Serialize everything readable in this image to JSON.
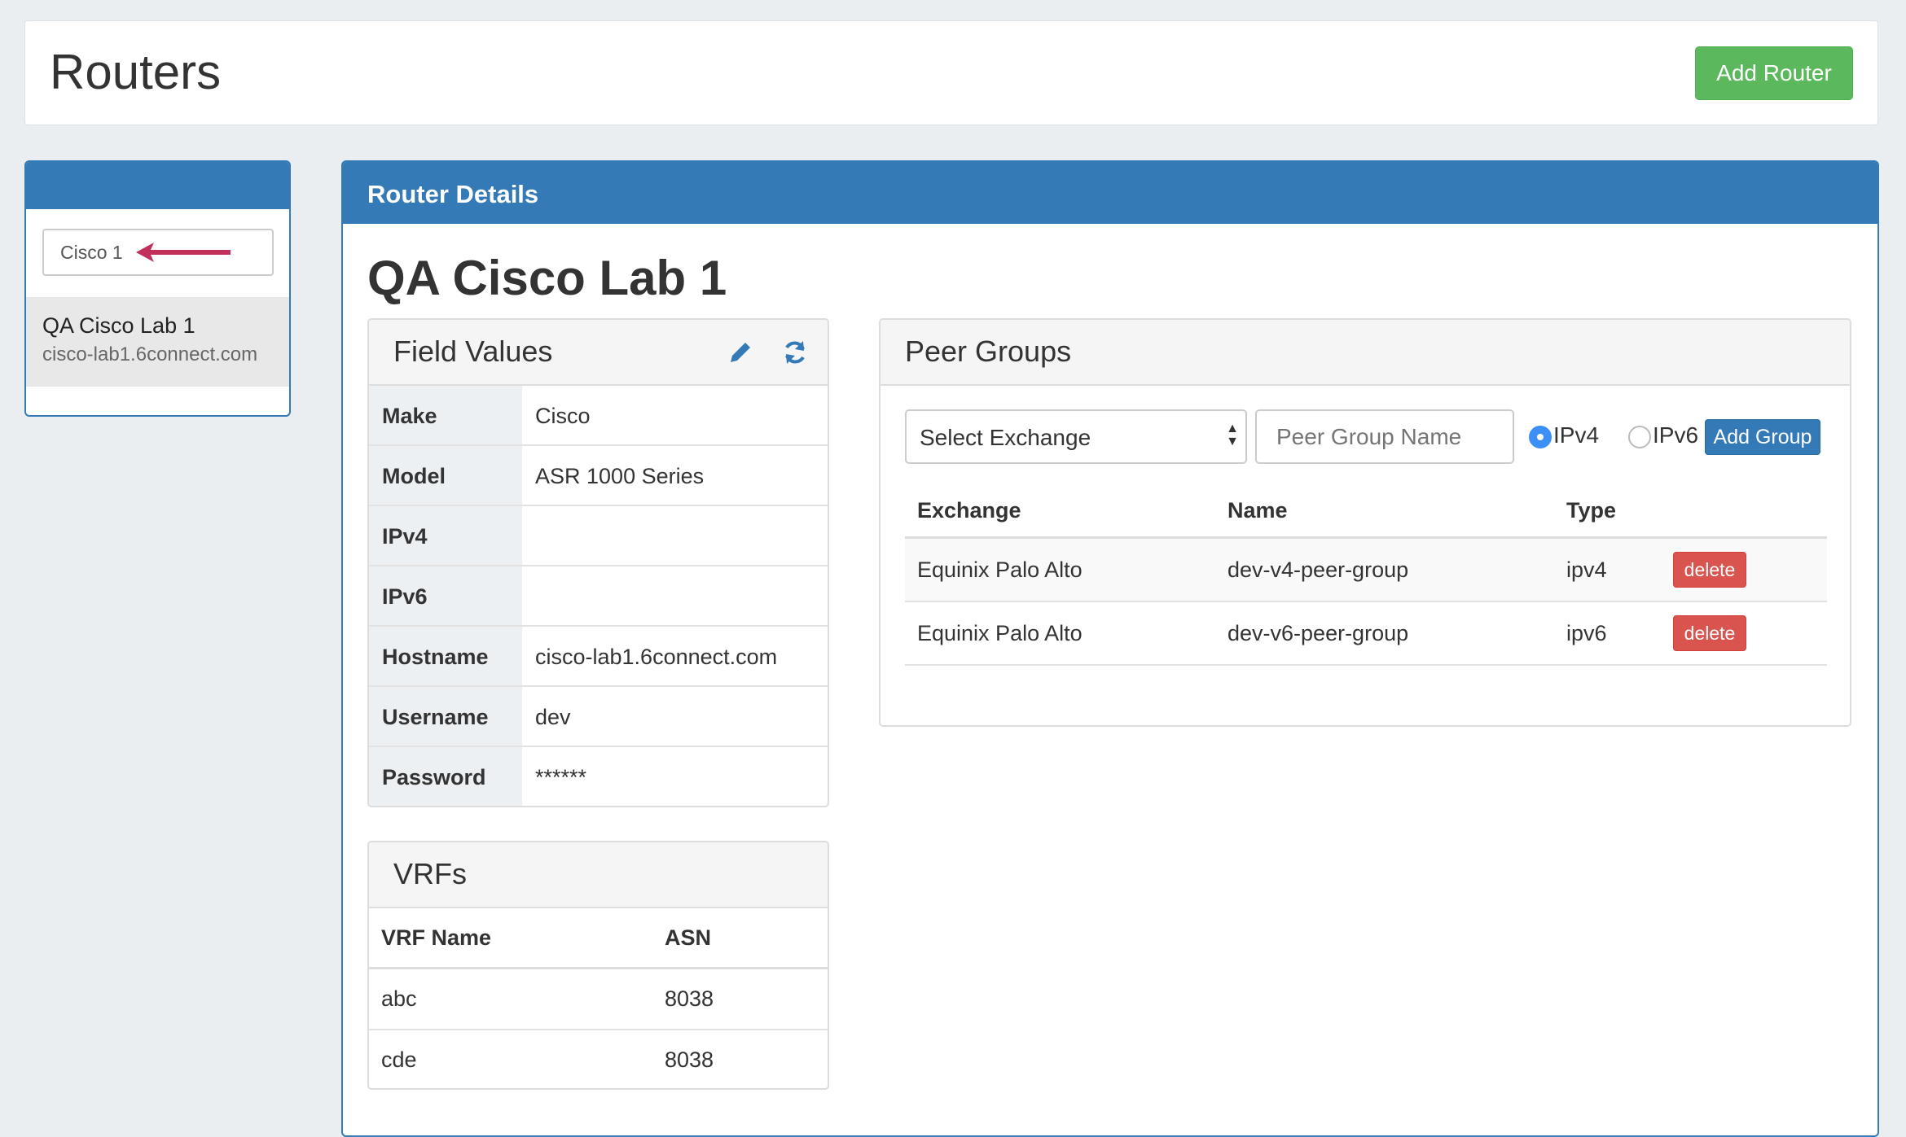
{
  "header": {
    "title": "Routers",
    "add_button": "Add Router"
  },
  "sidebar": {
    "search_value": "Cisco 1",
    "items": [
      {
        "name": "QA Cisco Lab 1",
        "host": "cisco-lab1.6connect.com"
      }
    ]
  },
  "main": {
    "panel_title": "Router Details",
    "router_name": "QA Cisco Lab 1",
    "field_values": {
      "title": "Field Values",
      "rows": [
        {
          "label": "Make",
          "value": "Cisco"
        },
        {
          "label": "Model",
          "value": "ASR 1000 Series"
        },
        {
          "label": "IPv4",
          "value": ""
        },
        {
          "label": "IPv6",
          "value": ""
        },
        {
          "label": "Hostname",
          "value": "cisco-lab1.6connect.com"
        },
        {
          "label": "Username",
          "value": "dev"
        },
        {
          "label": "Password",
          "value": "******"
        }
      ]
    },
    "vrfs": {
      "title": "VRFs",
      "columns": [
        "VRF Name",
        "ASN"
      ],
      "rows": [
        [
          "abc",
          "8038"
        ],
        [
          "cde",
          "8038"
        ]
      ]
    },
    "peer_groups": {
      "title": "Peer Groups",
      "select_value": "Select Exchange",
      "name_placeholder": "Peer Group Name",
      "radio_ipv4": "IPv4",
      "radio_ipv6": "IPv6",
      "selected": "IPv4",
      "add_button": "Add Group",
      "columns": [
        "Exchange",
        "Name",
        "Type"
      ],
      "rows": [
        {
          "exchange": "Equinix Palo Alto",
          "name": "dev-v4-peer-group",
          "type": "ipv4",
          "action": "delete"
        },
        {
          "exchange": "Equinix Palo Alto",
          "name": "dev-v6-peer-group",
          "type": "ipv6",
          "action": "delete"
        }
      ]
    }
  },
  "colors": {
    "primary": "#337ab7",
    "success": "#5cb85c",
    "danger": "#d9534f",
    "arrow": "#c0305a"
  }
}
